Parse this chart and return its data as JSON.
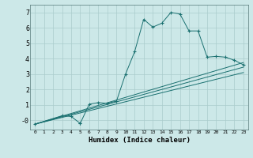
{
  "xlabel": "Humidex (Indice chaleur)",
  "background_color": "#cce8e8",
  "line_color": "#1a7070",
  "grid_color": "#aacccc",
  "xlim": [
    -0.5,
    23.5
  ],
  "ylim": [
    -0.6,
    7.5
  ],
  "xticks": [
    0,
    1,
    2,
    3,
    4,
    5,
    6,
    7,
    8,
    9,
    10,
    11,
    12,
    13,
    14,
    15,
    16,
    17,
    18,
    19,
    20,
    21,
    22,
    23
  ],
  "yticks": [
    0,
    1,
    2,
    3,
    4,
    5,
    6,
    7
  ],
  "ytick_labels": [
    "-0",
    "1",
    "2",
    "3",
    "4",
    "5",
    "6",
    "7"
  ],
  "line1_x": [
    0,
    3,
    4,
    5,
    5,
    6,
    7,
    8,
    9,
    10,
    11,
    12,
    13,
    14,
    15,
    16,
    17,
    18,
    19,
    20,
    21,
    22,
    23
  ],
  "line1_y": [
    -0.25,
    0.3,
    0.25,
    -0.2,
    -0.2,
    1.05,
    1.15,
    1.1,
    1.25,
    3.0,
    4.45,
    6.55,
    6.05,
    6.3,
    7.0,
    6.9,
    5.8,
    5.8,
    4.1,
    4.15,
    4.1,
    3.9,
    3.6
  ],
  "line2_x": [
    0,
    23
  ],
  "line2_y": [
    -0.25,
    3.75
  ],
  "line3_x": [
    0,
    23
  ],
  "line3_y": [
    -0.25,
    3.45
  ],
  "line4_x": [
    0,
    23
  ],
  "line4_y": [
    -0.25,
    3.1
  ]
}
